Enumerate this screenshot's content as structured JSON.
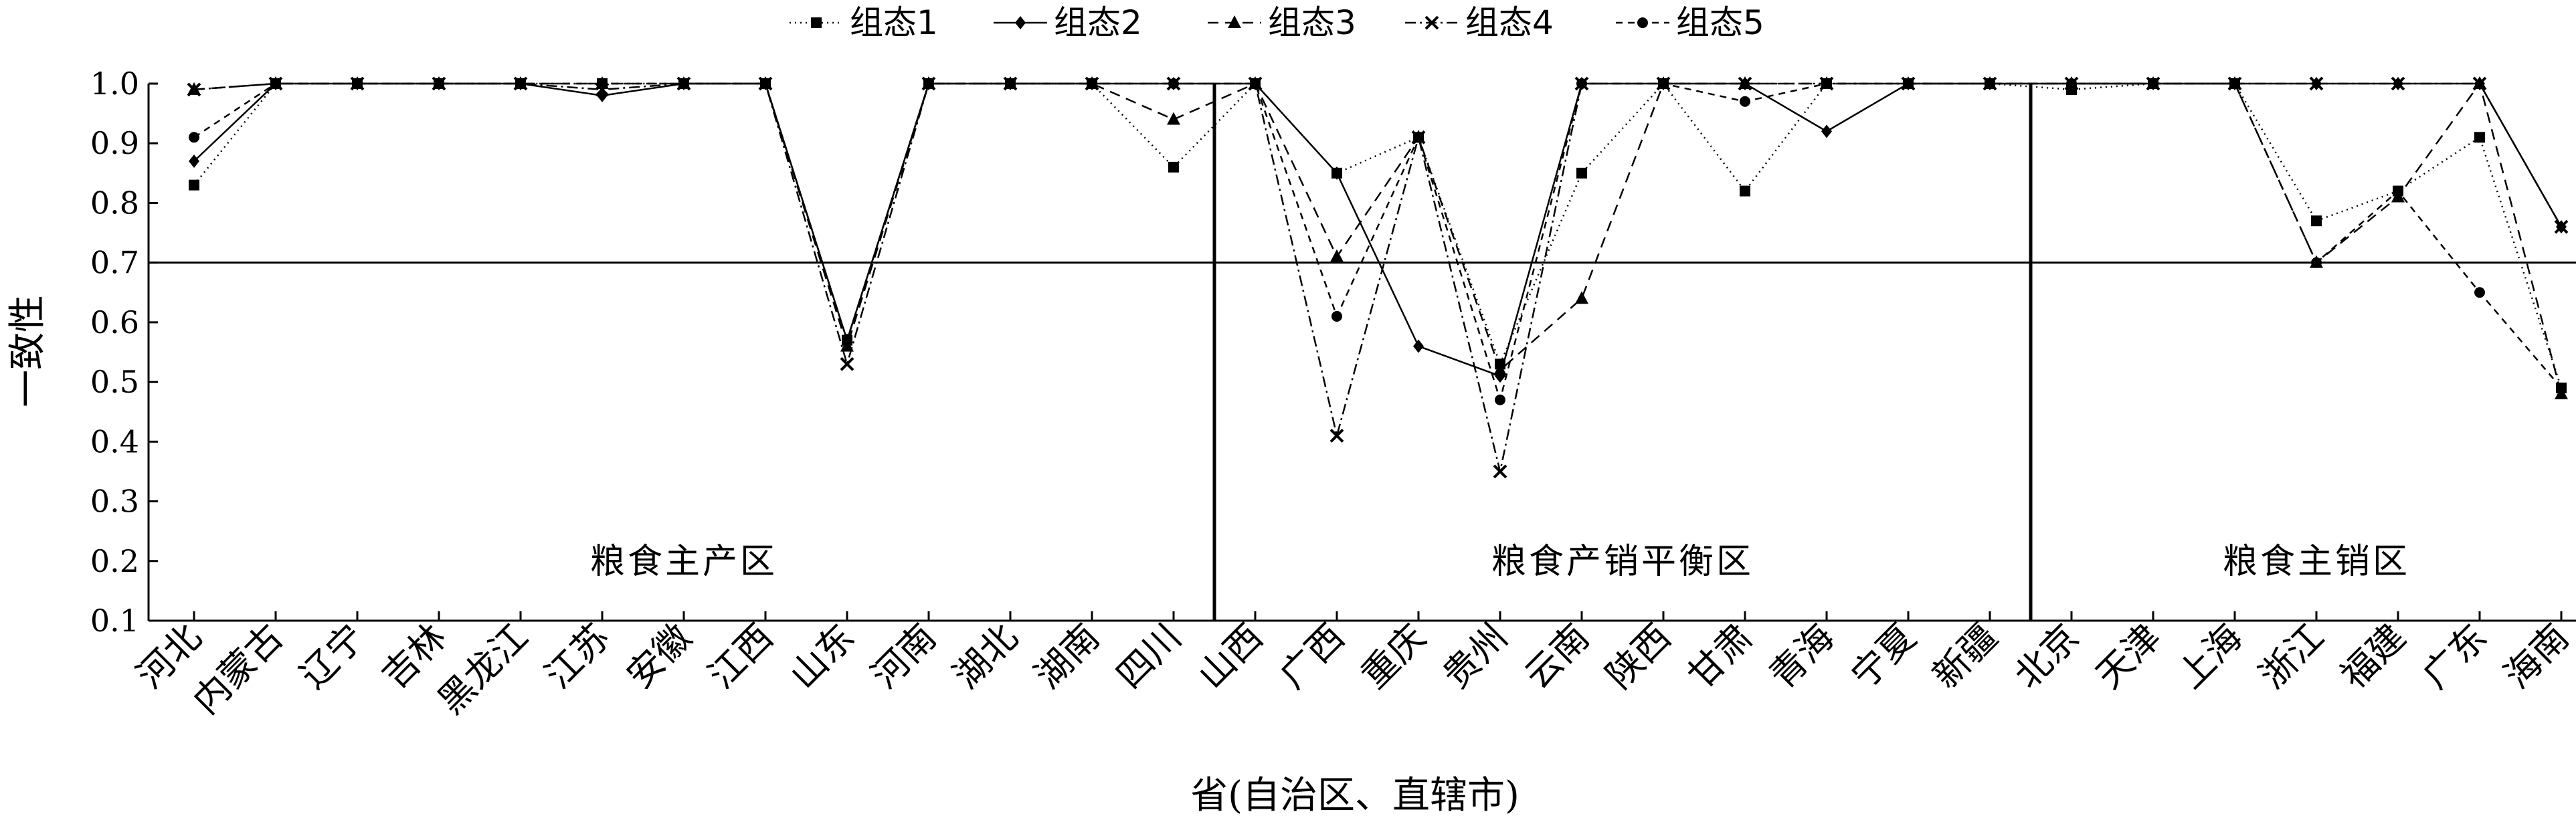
{
  "chart_data": {
    "type": "line",
    "title": "",
    "xlabel": "省(自治区、直辖市)",
    "ylabel": "一致性",
    "ylim": [
      0.1,
      1.0
    ],
    "yticks": [
      "0.1",
      "0.2",
      "0.3",
      "0.4",
      "0.5",
      "0.6",
      "0.7",
      "0.8",
      "0.9",
      "1.0"
    ],
    "threshold": 0.7,
    "categories": [
      "河北",
      "内蒙古",
      "辽宁",
      "吉林",
      "黑龙江",
      "江苏",
      "安徽",
      "江西",
      "山东",
      "河南",
      "湖北",
      "湖南",
      "四川",
      "山西",
      "广西",
      "重庆",
      "贵州",
      "云南",
      "陕西",
      "甘肃",
      "青海",
      "宁夏",
      "新疆",
      "北京",
      "天津",
      "上海",
      "浙江",
      "福建",
      "广东",
      "海南"
    ],
    "regions": [
      {
        "label": "粮食主产区",
        "start": 0,
        "end": 12
      },
      {
        "label": "粮食产销平衡区",
        "start": 13,
        "end": 22
      },
      {
        "label": "粮食主销区",
        "start": 23,
        "end": 29
      }
    ],
    "legend_position": "top",
    "series": [
      {
        "name": "组态1",
        "marker": "square",
        "dash": "2,6",
        "values": [
          0.83,
          1.0,
          1.0,
          1.0,
          1.0,
          1.0,
          1.0,
          1.0,
          0.57,
          1.0,
          1.0,
          1.0,
          0.86,
          1.0,
          0.85,
          0.91,
          0.53,
          0.85,
          1.0,
          0.82,
          1.0,
          1.0,
          1.0,
          0.99,
          1.0,
          1.0,
          0.77,
          0.82,
          0.91,
          0.49
        ]
      },
      {
        "name": "组态2",
        "marker": "diamond",
        "dash": "none",
        "values": [
          0.87,
          1.0,
          1.0,
          1.0,
          1.0,
          0.98,
          1.0,
          1.0,
          0.57,
          1.0,
          1.0,
          1.0,
          1.0,
          1.0,
          0.85,
          0.56,
          0.51,
          1.0,
          1.0,
          1.0,
          0.92,
          1.0,
          1.0,
          1.0,
          1.0,
          1.0,
          1.0,
          1.0,
          1.0,
          0.76
        ]
      },
      {
        "name": "组态3",
        "marker": "triangle",
        "dash": "16,10",
        "values": [
          0.99,
          1.0,
          1.0,
          1.0,
          1.0,
          1.0,
          1.0,
          1.0,
          0.56,
          1.0,
          1.0,
          1.0,
          0.94,
          1.0,
          0.71,
          0.91,
          0.52,
          0.64,
          1.0,
          1.0,
          1.0,
          1.0,
          1.0,
          1.0,
          1.0,
          1.0,
          0.7,
          0.81,
          1.0,
          0.48
        ]
      },
      {
        "name": "组态4",
        "marker": "x",
        "dash": "16,6,3,6",
        "values": [
          0.99,
          1.0,
          1.0,
          1.0,
          1.0,
          0.99,
          1.0,
          1.0,
          0.53,
          1.0,
          1.0,
          1.0,
          1.0,
          1.0,
          0.41,
          0.91,
          0.35,
          1.0,
          1.0,
          1.0,
          1.0,
          1.0,
          1.0,
          1.0,
          1.0,
          1.0,
          1.0,
          1.0,
          1.0,
          0.76
        ]
      },
      {
        "name": "组态5",
        "marker": "circle",
        "dash": "10,8",
        "values": [
          0.91,
          1.0,
          1.0,
          1.0,
          1.0,
          1.0,
          1.0,
          1.0,
          0.57,
          1.0,
          1.0,
          1.0,
          1.0,
          1.0,
          0.61,
          0.91,
          0.47,
          1.0,
          1.0,
          0.97,
          1.0,
          1.0,
          1.0,
          1.0,
          1.0,
          1.0,
          0.7,
          0.82,
          0.65,
          0.49
        ]
      }
    ]
  }
}
